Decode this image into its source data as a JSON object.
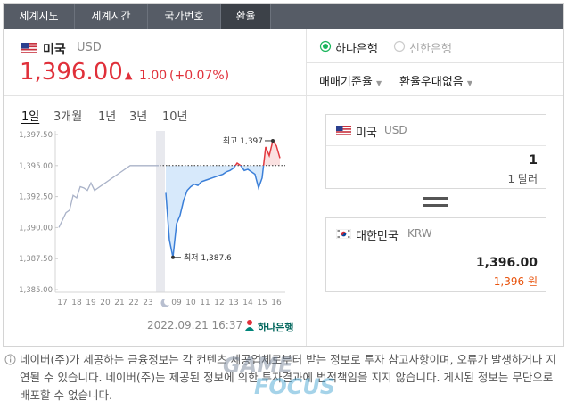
{
  "tabs": [
    "세계지도",
    "세계시간",
    "국가번호",
    "환율"
  ],
  "active_tab": 3,
  "currency": {
    "name": "미국",
    "code": "USD",
    "rate": "1,396.00",
    "change": "1.00",
    "change_percent": "(+0.07%)"
  },
  "periods": [
    "1일",
    "3개월",
    "1년",
    "3년",
    "10년"
  ],
  "active_period": 0,
  "chart": {
    "type": "line",
    "categories": [
      null,
      "17",
      null,
      null,
      null,
      "18",
      null,
      null,
      null,
      "19",
      null,
      null,
      null,
      "20",
      null,
      null,
      null,
      "21",
      null,
      null,
      null,
      "22",
      null,
      null,
      null,
      "23",
      null,
      null,
      null,
      null,
      null,
      null,
      null,
      "09",
      null,
      null,
      null,
      "10",
      null,
      null,
      null,
      "11",
      null,
      null,
      null,
      "12",
      null,
      null,
      null,
      "13",
      null,
      null,
      null,
      "14",
      null,
      null,
      null,
      "15",
      null,
      null,
      null,
      "16",
      null
    ],
    "series": [
      {
        "color": "#a9b2c8",
        "values": [
          1390.0,
          1390.6,
          1391.2,
          1391.4,
          1392.6,
          1392.4,
          1393.3,
          1393.2,
          1393.0,
          1393.6,
          1393.0,
          1393.2,
          1393.4,
          1393.6,
          1393.8,
          1394.0,
          1394.2,
          1394.4,
          1394.6,
          1394.8,
          1395.0,
          1395.0,
          1395.0,
          1395.0,
          1395.0,
          1395.0,
          1395.0,
          1395.0,
          1395.0,
          null,
          null,
          null,
          null,
          null,
          null,
          null,
          null,
          null,
          null,
          null,
          null,
          null,
          null,
          null,
          null,
          null,
          null,
          null,
          null,
          null,
          null,
          null,
          null,
          null,
          null,
          null,
          null,
          null,
          null,
          null,
          null,
          null,
          null
        ]
      },
      {
        "color": "#3b7fd8",
        "above_color": "#e2383f",
        "fill_below": "#d7e9fb",
        "fill_above": "#fbe1e1",
        "values": [
          null,
          null,
          null,
          null,
          null,
          null,
          null,
          null,
          null,
          null,
          null,
          null,
          null,
          null,
          null,
          null,
          null,
          null,
          null,
          null,
          null,
          null,
          null,
          null,
          null,
          null,
          null,
          null,
          null,
          null,
          1392.8,
          1389.0,
          1387.6,
          1390.3,
          1391.0,
          1392.2,
          1393.0,
          1393.3,
          1393.5,
          1393.4,
          1393.7,
          1393.8,
          1393.9,
          1394.0,
          1394.1,
          1394.2,
          1394.3,
          1394.5,
          1394.6,
          1394.8,
          1395.2,
          1395.0,
          1394.6,
          1394.7,
          1394.5,
          1394.3,
          1393.2,
          1394.0,
          1396.5,
          1395.8,
          1397.0,
          1396.6,
          1395.6
        ]
      }
    ],
    "baseline": 1395,
    "ylim": [
      1385,
      1397.5
    ],
    "yticks": [
      {
        "value": 1385,
        "label": "1,385.00"
      },
      {
        "value": 1387.5,
        "label": "1,387.50"
      },
      {
        "value": 1390,
        "label": "1,390.00"
      },
      {
        "value": 1392.5,
        "label": "1,392.50"
      },
      {
        "value": 1395,
        "label": "1,395.00"
      },
      {
        "value": 1397.5,
        "label": "1,397.50"
      }
    ],
    "high_label": "최고 1,397",
    "low_label": "최저 1,387.6"
  },
  "timestamp": "2022.09.21 16:37",
  "bank_logo": "하나은행",
  "banks": [
    "하나은행",
    "신한은행"
  ],
  "dropdowns": [
    "매매기준율",
    "환율우대없음"
  ],
  "converter": {
    "from": {
      "name": "미국",
      "code": "USD",
      "amount": "1",
      "amount_text": "1 달러"
    },
    "to": {
      "name": "대한민국",
      "code": "KRW",
      "amount": "1,396.00",
      "amount_text": "1,396 원"
    }
  },
  "notice": "네이버(주)가 제공하는 금융정보는 각 컨텐츠 제공업체로부터 받는 정보로 투자 참고사항이며, 오류가 발생하거나 지연될 수 있습니다. 네이버(주)는 제공된 정보에 의한 투자결과에 법적책임을 지지 않습니다. 게시된 정보는 무단으로 배포할 수 없습니다.",
  "watermark": [
    "GAME",
    "FOCUS"
  ]
}
